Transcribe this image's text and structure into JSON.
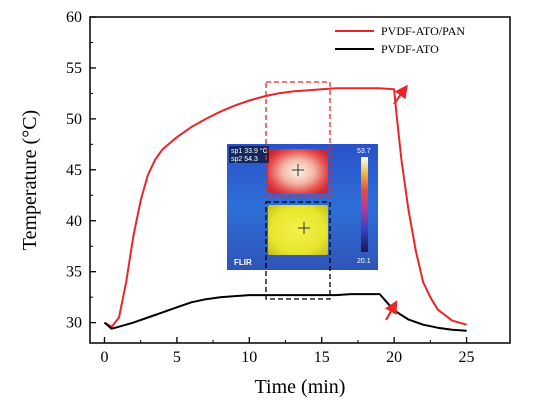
{
  "chart_data": {
    "type": "line",
    "xlabel": "Time (min)",
    "ylabel": "Temperature (°C)",
    "xlim": [
      -1,
      28
    ],
    "ylim": [
      28,
      60
    ],
    "xticks": [
      0,
      5,
      10,
      15,
      20,
      25
    ],
    "yticks": [
      30,
      35,
      40,
      45,
      50,
      55,
      60
    ],
    "grid": false,
    "legend_position": "top-right",
    "series": [
      {
        "name": "PVDF-ATO/PAN",
        "color": "#e8262a",
        "points": [
          [
            0,
            30
          ],
          [
            0.5,
            29.6
          ],
          [
            1,
            30.5
          ],
          [
            1.5,
            34
          ],
          [
            2,
            38.5
          ],
          [
            2.5,
            42
          ],
          [
            3,
            44.5
          ],
          [
            3.5,
            46
          ],
          [
            4,
            47
          ],
          [
            5,
            48.2
          ],
          [
            6,
            49.2
          ],
          [
            7,
            50
          ],
          [
            8,
            50.7
          ],
          [
            9,
            51.3
          ],
          [
            10,
            51.8
          ],
          [
            11,
            52.2
          ],
          [
            12,
            52.5
          ],
          [
            13,
            52.7
          ],
          [
            14,
            52.8
          ],
          [
            15,
            52.9
          ],
          [
            16,
            53
          ],
          [
            17,
            53
          ],
          [
            18,
            53
          ],
          [
            19,
            53
          ],
          [
            20,
            52.9
          ],
          [
            20.2,
            50
          ],
          [
            20.5,
            46
          ],
          [
            21,
            41
          ],
          [
            21.5,
            37
          ],
          [
            22,
            34
          ],
          [
            22.5,
            32.5
          ],
          [
            23,
            31.3
          ],
          [
            24,
            30.2
          ],
          [
            25,
            29.8
          ]
        ]
      },
      {
        "name": "PVDF-ATO",
        "color": "#000000",
        "points": [
          [
            0,
            30
          ],
          [
            0.5,
            29.4
          ],
          [
            1,
            29.6
          ],
          [
            2,
            30
          ],
          [
            3,
            30.5
          ],
          [
            4,
            31
          ],
          [
            5,
            31.5
          ],
          [
            6,
            32
          ],
          [
            7,
            32.3
          ],
          [
            8,
            32.5
          ],
          [
            9,
            32.6
          ],
          [
            10,
            32.7
          ],
          [
            11,
            32.7
          ],
          [
            12,
            32.7
          ],
          [
            13,
            32.7
          ],
          [
            14,
            32.7
          ],
          [
            15,
            32.7
          ],
          [
            16,
            32.7
          ],
          [
            17,
            32.8
          ],
          [
            18,
            32.8
          ],
          [
            19,
            32.8
          ],
          [
            19.5,
            32
          ],
          [
            20,
            31.2
          ],
          [
            21,
            30.3
          ],
          [
            22,
            29.8
          ],
          [
            23,
            29.5
          ],
          [
            24,
            29.3
          ],
          [
            25,
            29.2
          ]
        ]
      }
    ]
  },
  "inset": {
    "top_readout": "sp1 33.9 °C",
    "bottom_readout": "sp2 54.3",
    "scale_max": "53.7",
    "scale_min": "20.1",
    "logo": "FLIR"
  }
}
